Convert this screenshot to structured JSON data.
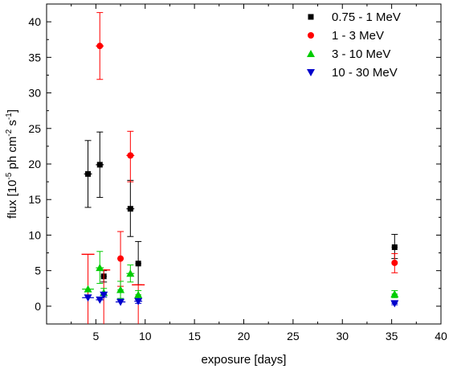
{
  "chart_data": {
    "type": "scatter",
    "title": "",
    "xlabel": "exposure [days]",
    "ylabel_parts": [
      "flux [10",
      "-5",
      " ph cm",
      "-2",
      " s",
      "-1",
      "]"
    ],
    "xlim": [
      0,
      40
    ],
    "ylim": [
      -2.5,
      42.5
    ],
    "x_ticks": [
      5,
      10,
      15,
      20,
      25,
      30,
      35,
      40
    ],
    "y_ticks": [
      0,
      5,
      10,
      15,
      20,
      25,
      30,
      35,
      40
    ],
    "grid": false,
    "legend_position": "top-right",
    "series": [
      {
        "name": "0.75 - 1 MeV",
        "marker": "square",
        "color": "#000000",
        "points": [
          {
            "x": 4.2,
            "y": 18.6,
            "err_lo": 4.7,
            "err_hi": 4.7,
            "xerr": 0.4
          },
          {
            "x": 5.4,
            "y": 19.9,
            "err_lo": 4.6,
            "err_hi": 4.6,
            "xerr": 0.4
          },
          {
            "x": 5.8,
            "y": 4.2,
            "err_lo": 0.8,
            "err_hi": 0.8,
            "xerr": 0.3
          },
          {
            "x": 8.5,
            "y": 13.7,
            "err_lo": 3.9,
            "err_hi": 4.0,
            "xerr": 0.4
          },
          {
            "x": 9.3,
            "y": 6.0,
            "err_lo": 3.0,
            "err_hi": 3.1,
            "xerr": 0.3
          },
          {
            "x": 35.3,
            "y": 8.3,
            "err_lo": 1.6,
            "err_hi": 1.8,
            "xerr": 0.3
          }
        ]
      },
      {
        "name": "1 - 3 MeV",
        "marker": "circle",
        "color": "#ff0000",
        "points": [
          {
            "x": 4.2,
            "y": 7.3,
            "err_lo": 9.8,
            "err_hi": 0,
            "xerr": 0,
            "ul": true
          },
          {
            "x": 5.4,
            "y": 36.6,
            "err_lo": 4.7,
            "err_hi": 4.7,
            "xerr": 0.4
          },
          {
            "x": 5.8,
            "y": 5.1,
            "err_lo": 7.6,
            "err_hi": 0,
            "xerr": 0.3,
            "ul": true
          },
          {
            "x": 7.5,
            "y": 6.7,
            "err_lo": 3.9,
            "err_hi": 3.8,
            "xerr": 0.3
          },
          {
            "x": 8.5,
            "y": 21.2,
            "err_lo": 3.7,
            "err_hi": 3.4,
            "xerr": 0.4
          },
          {
            "x": 9.3,
            "y": 3.0,
            "err_lo": 5.5,
            "err_hi": 0,
            "xerr": 0.4,
            "ul": true
          },
          {
            "x": 35.3,
            "y": 6.1,
            "err_lo": 1.4,
            "err_hi": 1.3,
            "xerr": 0.3
          }
        ]
      },
      {
        "name": "3 - 10 MeV",
        "marker": "triangle-up",
        "color": "#00cc00",
        "points": [
          {
            "x": 4.2,
            "y": 2.4,
            "err_lo": 0,
            "err_hi": 0,
            "xerr": 0.6
          },
          {
            "x": 5.4,
            "y": 5.4,
            "err_lo": 2.2,
            "err_hi": 2.3,
            "xerr": 0.4
          },
          {
            "x": 5.8,
            "y": 1.9,
            "err_lo": 0.6,
            "err_hi": 0.6,
            "xerr": 0.3
          },
          {
            "x": 7.5,
            "y": 2.3,
            "err_lo": 1.2,
            "err_hi": 1.2,
            "xerr": 0.3
          },
          {
            "x": 8.5,
            "y": 4.6,
            "err_lo": 1.2,
            "err_hi": 1.2,
            "xerr": 0.4
          },
          {
            "x": 9.3,
            "y": 1.6,
            "err_lo": 0.6,
            "err_hi": 0.6,
            "xerr": 0.3
          },
          {
            "x": 35.3,
            "y": 1.7,
            "err_lo": 0.5,
            "err_hi": 0.5,
            "xerr": 0.3
          }
        ]
      },
      {
        "name": "10 - 30 MeV",
        "marker": "triangle-down",
        "color": "#0000cc",
        "points": [
          {
            "x": 4.2,
            "y": 1.2,
            "err_lo": 0,
            "err_hi": 0,
            "xerr": 0.6
          },
          {
            "x": 5.4,
            "y": 0.9,
            "err_lo": 0,
            "err_hi": 0,
            "xerr": 0.4
          },
          {
            "x": 5.8,
            "y": 1.6,
            "err_lo": 0.3,
            "err_hi": 0.3,
            "xerr": 0.3
          },
          {
            "x": 7.5,
            "y": 0.6,
            "err_lo": 0,
            "err_hi": 0,
            "xerr": 0.5
          },
          {
            "x": 9.3,
            "y": 0.7,
            "err_lo": 0.3,
            "err_hi": 0.3,
            "xerr": 0.4
          },
          {
            "x": 35.3,
            "y": 0.4,
            "err_lo": 0.2,
            "err_hi": 0.2,
            "xerr": 0.3
          }
        ]
      }
    ]
  }
}
